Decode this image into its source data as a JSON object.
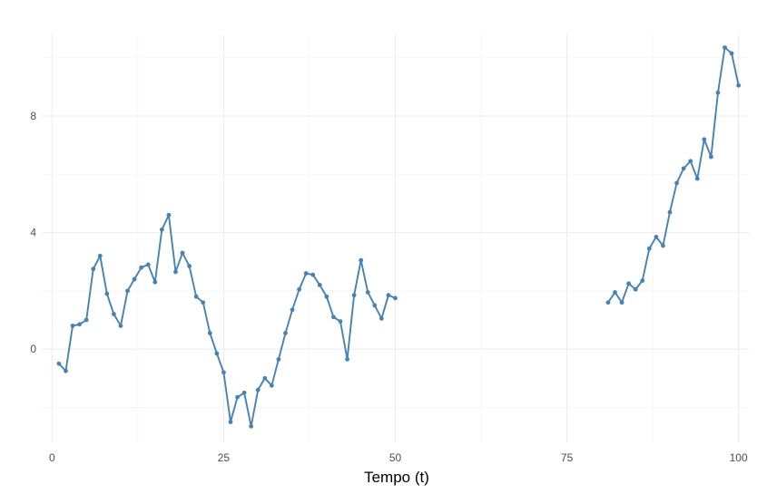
{
  "chart_data": {
    "type": "line",
    "title": "",
    "xlabel": "Tempo (t)",
    "ylabel": "",
    "xlim": [
      -1.5,
      101.5
    ],
    "ylim": [
      -3.2,
      10.8
    ],
    "x_ticks": [
      0,
      25,
      50,
      75,
      100
    ],
    "x_tick_labels": [
      "0",
      "25",
      "50",
      "75",
      "100"
    ],
    "y_ticks": [
      0,
      4,
      8
    ],
    "y_tick_labels": [
      "0",
      "4",
      "8"
    ],
    "grid": true,
    "legend": "none",
    "color": "#4682b4",
    "series": [
      {
        "x": [
          1,
          2,
          3,
          4,
          5,
          6,
          7,
          8,
          9,
          10,
          11,
          12,
          13,
          14,
          15,
          16,
          17,
          18,
          19,
          20,
          21,
          22,
          23,
          24,
          25,
          26,
          27,
          28,
          29,
          30,
          31,
          32,
          33,
          34,
          35,
          36,
          37,
          38,
          39,
          40,
          41,
          42,
          43,
          44,
          45,
          46,
          47,
          48,
          49,
          50,
          51,
          52,
          53,
          54,
          55,
          56,
          57,
          58,
          59,
          60,
          61,
          62,
          63,
          64,
          65,
          66,
          67,
          68,
          69,
          70,
          71,
          72,
          73,
          74,
          75,
          76,
          77,
          78,
          79,
          80,
          81,
          82,
          83,
          84,
          85,
          86,
          87,
          88,
          89,
          90,
          91,
          92,
          93,
          94,
          95,
          96,
          97,
          98,
          99,
          100
        ],
        "y": [
          -0.5,
          -0.75,
          0.8,
          0.85,
          1.0,
          2.75,
          3.2,
          1.9,
          1.2,
          0.8,
          2.0,
          2.4,
          2.8,
          2.9,
          2.3,
          4.1,
          4.6,
          2.65,
          3.3,
          2.85,
          1.8,
          1.6,
          0.55,
          -0.15,
          -0.8,
          -2.5,
          -1.65,
          -1.5,
          -2.65,
          -1.4,
          -1.0,
          -1.25,
          -0.35,
          0.55,
          1.35,
          2.05,
          2.6,
          2.55,
          2.2,
          1.8,
          1.1,
          0.95,
          -0.35,
          1.85,
          3.05,
          1.95,
          1.5,
          1.05,
          1.85,
          1.75,
          null,
          null,
          null,
          null,
          null,
          null,
          null,
          null,
          null,
          null,
          null,
          null,
          null,
          null,
          null,
          null,
          null,
          null,
          null,
          null,
          null,
          null,
          null,
          null,
          null,
          null,
          null,
          null,
          null,
          null,
          1.6,
          1.95,
          1.6,
          2.25,
          2.05,
          2.35,
          3.45,
          3.85,
          3.55,
          4.7,
          5.7,
          6.2,
          6.45,
          5.85,
          7.2,
          6.6,
          8.8,
          10.35,
          10.15,
          9.05
        ]
      }
    ]
  }
}
